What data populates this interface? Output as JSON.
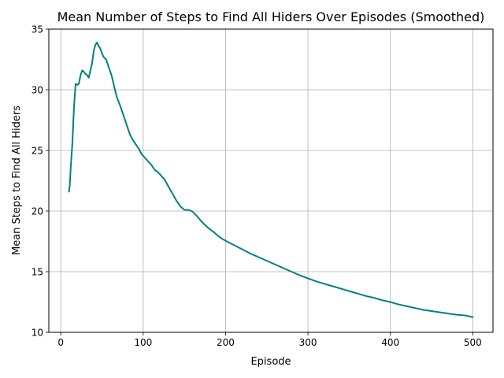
{
  "chart_data": {
    "type": "line",
    "title": "Mean Number of Steps to Find All Hiders Over Episodes (Smoothed)",
    "xlabel": "Episode",
    "ylabel": "Mean Steps to Find All Hiders",
    "xlim": [
      -14.5,
      524.5
    ],
    "ylim": [
      10,
      35
    ],
    "xticks": [
      0,
      100,
      200,
      300,
      400,
      500
    ],
    "yticks": [
      10,
      15,
      20,
      25,
      30,
      35
    ],
    "grid": true,
    "legend": "none",
    "series": [
      {
        "color": "#008080",
        "points": [
          [
            10,
            21.6
          ],
          [
            11,
            22.2
          ],
          [
            12,
            23.5
          ],
          [
            14,
            25.5
          ],
          [
            16,
            28.5
          ],
          [
            18,
            30.5
          ],
          [
            20,
            30.4
          ],
          [
            22,
            30.5
          ],
          [
            24,
            31.2
          ],
          [
            26,
            31.6
          ],
          [
            28,
            31.5
          ],
          [
            30,
            31.3
          ],
          [
            32,
            31.2
          ],
          [
            34,
            31.0
          ],
          [
            36,
            31.6
          ],
          [
            38,
            32.2
          ],
          [
            40,
            33.2
          ],
          [
            42,
            33.7
          ],
          [
            44,
            33.9
          ],
          [
            46,
            33.6
          ],
          [
            48,
            33.4
          ],
          [
            50,
            33.0
          ],
          [
            52,
            32.7
          ],
          [
            55,
            32.5
          ],
          [
            58,
            31.9
          ],
          [
            62,
            31.1
          ],
          [
            65,
            30.2
          ],
          [
            68,
            29.4
          ],
          [
            72,
            28.7
          ],
          [
            76,
            27.9
          ],
          [
            80,
            27.1
          ],
          [
            84,
            26.3
          ],
          [
            88,
            25.8
          ],
          [
            92,
            25.4
          ],
          [
            95,
            25.1
          ],
          [
            98,
            24.7
          ],
          [
            102,
            24.4
          ],
          [
            106,
            24.1
          ],
          [
            110,
            23.8
          ],
          [
            114,
            23.4
          ],
          [
            118,
            23.2
          ],
          [
            122,
            22.9
          ],
          [
            126,
            22.6
          ],
          [
            130,
            22.1
          ],
          [
            135,
            21.5
          ],
          [
            140,
            20.9
          ],
          [
            145,
            20.4
          ],
          [
            150,
            20.1
          ],
          [
            155,
            20.1
          ],
          [
            160,
            19.95
          ],
          [
            165,
            19.6
          ],
          [
            170,
            19.2
          ],
          [
            175,
            18.85
          ],
          [
            180,
            18.55
          ],
          [
            185,
            18.3
          ],
          [
            190,
            18.0
          ],
          [
            195,
            17.75
          ],
          [
            200,
            17.55
          ],
          [
            210,
            17.2
          ],
          [
            220,
            16.85
          ],
          [
            230,
            16.5
          ],
          [
            240,
            16.2
          ],
          [
            250,
            15.9
          ],
          [
            260,
            15.6
          ],
          [
            270,
            15.3
          ],
          [
            280,
            15.0
          ],
          [
            290,
            14.7
          ],
          [
            300,
            14.45
          ],
          [
            310,
            14.2
          ],
          [
            320,
            14.0
          ],
          [
            330,
            13.8
          ],
          [
            340,
            13.6
          ],
          [
            350,
            13.4
          ],
          [
            360,
            13.2
          ],
          [
            370,
            13.0
          ],
          [
            380,
            12.85
          ],
          [
            390,
            12.65
          ],
          [
            400,
            12.5
          ],
          [
            410,
            12.3
          ],
          [
            420,
            12.15
          ],
          [
            430,
            12.0
          ],
          [
            440,
            11.85
          ],
          [
            450,
            11.75
          ],
          [
            460,
            11.65
          ],
          [
            470,
            11.55
          ],
          [
            480,
            11.45
          ],
          [
            490,
            11.4
          ],
          [
            500,
            11.25
          ]
        ]
      }
    ]
  }
}
